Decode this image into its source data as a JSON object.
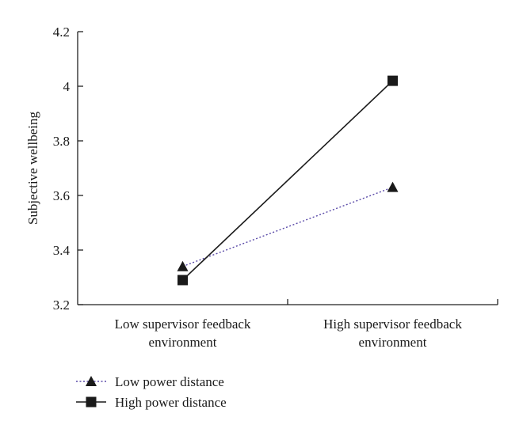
{
  "chart_data": {
    "type": "line",
    "title": "",
    "xlabel": "",
    "ylabel": "Subjective wellbeing",
    "categories": [
      [
        "Low supervisor feedback",
        "environment"
      ],
      [
        "High supervisor feedback",
        "environment"
      ]
    ],
    "ylim": [
      3.2,
      4.2
    ],
    "yticks": [
      3.2,
      3.4,
      3.6,
      3.8,
      4.0,
      4.2
    ],
    "ytick_labels": [
      "3.2",
      "3.4",
      "3.6",
      "3.8",
      "4",
      "4.2"
    ],
    "grid": false,
    "legend_position": "bottom-left",
    "series": [
      {
        "name": "Low power distance",
        "values": [
          3.34,
          3.63
        ],
        "marker": "triangle",
        "line_style": "dotted",
        "color": "#5a4aa8"
      },
      {
        "name": "High power distance",
        "values": [
          3.29,
          4.02
        ],
        "marker": "square",
        "line_style": "solid",
        "color": "#1a1a1a"
      }
    ]
  }
}
